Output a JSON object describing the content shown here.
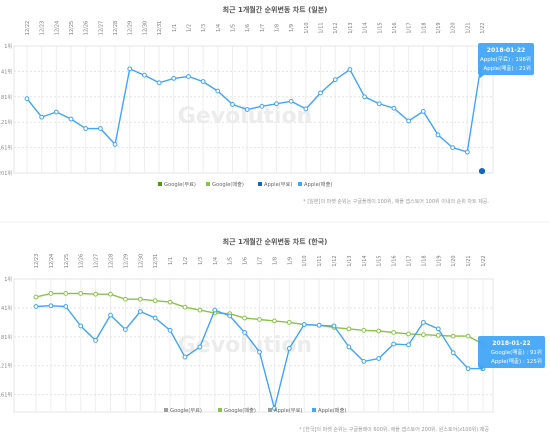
{
  "watermark": "Gevolution",
  "chart_data": [
    {
      "type": "line",
      "title": "최근 1개월간 순위변동 차트 (일본)",
      "x": [
        "12/22",
        "12/23",
        "12/24",
        "12/25",
        "12/26",
        "12/27",
        "12/28",
        "12/29",
        "12/30",
        "12/31",
        "1/1",
        "1/2",
        "1/3",
        "1/4",
        "1/5",
        "1/6",
        "1/7",
        "1/8",
        "1/9",
        "1/10",
        "1/11",
        "1/12",
        "1/13",
        "1/14",
        "1/15",
        "1/16",
        "1/17",
        "1/18",
        "1/19",
        "1/20",
        "1/21",
        "1/22"
      ],
      "y_ticks": [
        "1위",
        "41위",
        "81위",
        "121위",
        "161위",
        "201위"
      ],
      "y_tick_values": [
        1,
        41,
        81,
        121,
        161,
        201
      ],
      "ylim": [
        1,
        201
      ],
      "y_reversed": true,
      "grid": true,
      "legend": [
        {
          "label": "Google(무료)",
          "color": "#4e9a06"
        },
        {
          "label": "Google(매출)",
          "color": "#8bc34a"
        },
        {
          "label": "Apple(무료)",
          "color": "#1565c0"
        },
        {
          "label": "Apple(매출)",
          "color": "#42a5f5"
        }
      ],
      "series": [
        {
          "name": "Apple(매출)",
          "color": "#42a5f5",
          "values": [
            84,
            113,
            105,
            116,
            131,
            131,
            156,
            37,
            47,
            59,
            52,
            49,
            57,
            72,
            93,
            101,
            96,
            92,
            88,
            100,
            75,
            54,
            38,
            81,
            92,
            99,
            119,
            104,
            141,
            161,
            168,
            21
          ]
        },
        {
          "name": "Apple(무료)",
          "color": "#1565c0",
          "values": [
            null,
            null,
            null,
            null,
            null,
            null,
            null,
            null,
            null,
            null,
            null,
            null,
            null,
            null,
            null,
            null,
            null,
            null,
            null,
            null,
            null,
            null,
            null,
            null,
            null,
            null,
            null,
            null,
            null,
            null,
            null,
            198
          ]
        }
      ],
      "tooltip": {
        "date": "2018-01-22",
        "line1": "Apple(무료) : 198위",
        "line2": "Apple(매출) : 21위"
      },
      "note": "* [일본]의 마켓 순위는 구글플레이 100위, 애플 앱스토어 100위 이내의 순위 차트 제공."
    },
    {
      "type": "line",
      "title": "최근 1개월간 순위변동 차트 (한국)",
      "x": [
        "12/23",
        "12/24",
        "12/25",
        "12/26",
        "12/27",
        "12/28",
        "12/29",
        "12/30",
        "12/31",
        "1/1",
        "1/2",
        "1/3",
        "1/4",
        "1/5",
        "1/6",
        "1/7",
        "1/8",
        "1/9",
        "1/10",
        "1/11",
        "1/12",
        "1/13",
        "1/14",
        "1/15",
        "1/16",
        "1/17",
        "1/18",
        "1/19",
        "1/20",
        "1/21",
        "1/22"
      ],
      "y_ticks": [
        "1위",
        "41위",
        "81위",
        "121위",
        "161위"
      ],
      "y_tick_values": [
        1,
        41,
        81,
        121,
        161
      ],
      "ylim": [
        1,
        185
      ],
      "y_reversed": true,
      "grid": true,
      "legend": [
        {
          "label": "Google(무료)",
          "color": "#9e9e9e"
        },
        {
          "label": "Google(매출)",
          "color": "#8bc34a"
        },
        {
          "label": "Apple(무료)",
          "color": "#9e9e9e"
        },
        {
          "label": "Apple(매출)",
          "color": "#42a5f5"
        }
      ],
      "series": [
        {
          "name": "Google(매출)",
          "color": "#8bc34a",
          "values": [
            26,
            21,
            21,
            21,
            22,
            22,
            29,
            29,
            31,
            33,
            40,
            44,
            48,
            49,
            55,
            57,
            59,
            61,
            64,
            65,
            68,
            70,
            72,
            73,
            75,
            77,
            78,
            79,
            80,
            80,
            91
          ]
        },
        {
          "name": "Apple(매출)",
          "color": "#42a5f5",
          "values": [
            39,
            38,
            39,
            66,
            86,
            51,
            71,
            46,
            55,
            72,
            109,
            95,
            44,
            52,
            75,
            102,
            180,
            97,
            64,
            65,
            66,
            95,
            115,
            111,
            91,
            92,
            61,
            70,
            103,
            125,
            125
          ]
        }
      ],
      "tooltip": {
        "date": "2018-01-22",
        "line1": "Google(매출) : 91위",
        "line2": "Apple(매출) : 125위"
      },
      "note": "* [한국]의 마켓 순위는 구글플레이 600위, 애플 앱스토어 200위, 원스토어(x100위) 제공"
    }
  ]
}
